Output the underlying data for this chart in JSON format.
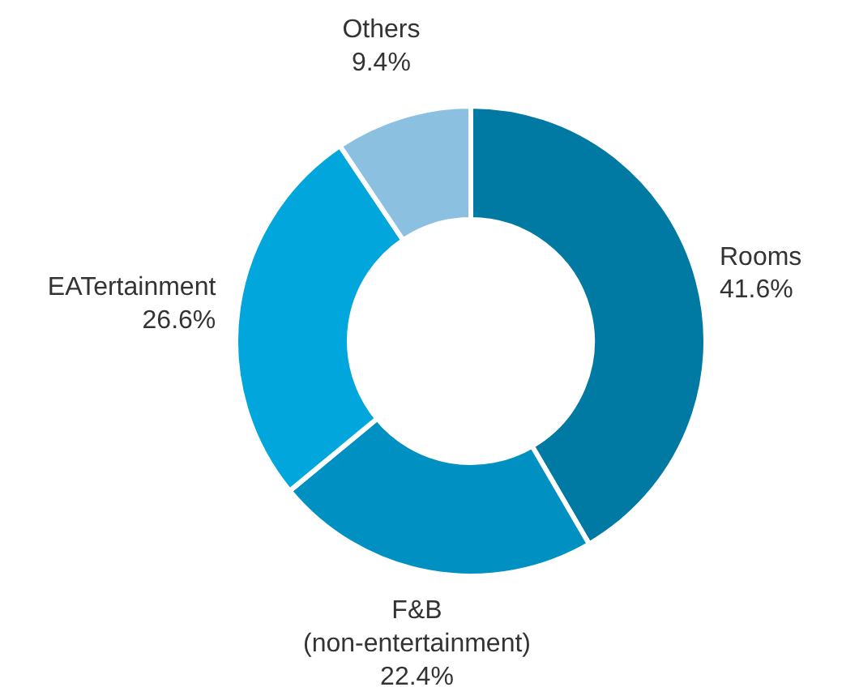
{
  "chart_data": {
    "type": "donut",
    "categories": [
      "Rooms",
      "F&B (non-entertainment)",
      "EATertainment",
      "Others"
    ],
    "values": [
      41.6,
      22.4,
      26.6,
      9.4
    ],
    "colors": [
      "#0079a3",
      "#0090c2",
      "#00a6dc",
      "#8bc0e0"
    ],
    "value_labels": [
      "41.6%",
      "22.4%",
      "26.6%",
      "9.4%"
    ]
  }
}
